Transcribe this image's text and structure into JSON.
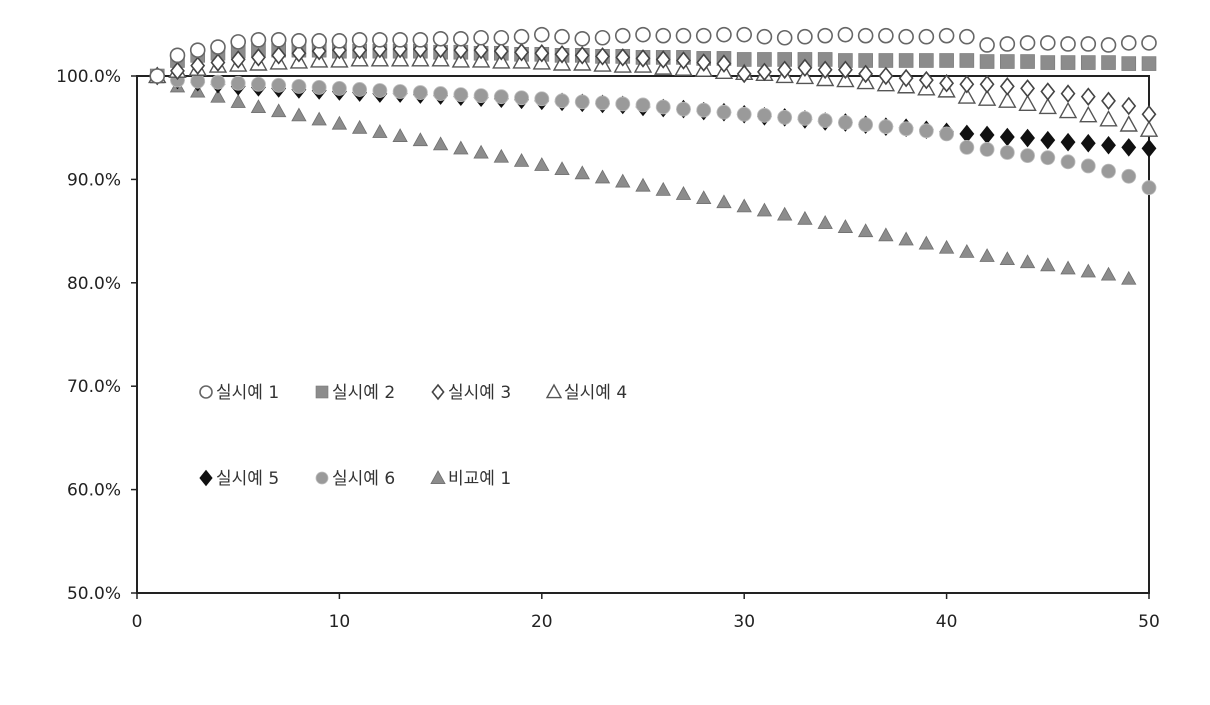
{
  "chart_data": {
    "type": "scatter",
    "title": "",
    "xlabel": "",
    "ylabel": "",
    "xlim": [
      0,
      50
    ],
    "ylim": [
      50,
      100
    ],
    "x_ticks": [
      0,
      10,
      20,
      30,
      40,
      50
    ],
    "y_ticks": [
      50,
      60,
      70,
      80,
      90,
      100
    ],
    "x_tick_labels": [
      "0",
      "10",
      "20",
      "30",
      "40",
      "50"
    ],
    "y_tick_labels": [
      "50.0%",
      "60.0%",
      "70.0%",
      "80.0%",
      "90.0%",
      "100.0%"
    ],
    "grid": false,
    "legend_position": "center-left",
    "series": [
      {
        "name": "실시예 1",
        "marker": "circle-open",
        "color": "#666666",
        "x": [
          1,
          2,
          3,
          4,
          5,
          6,
          7,
          8,
          9,
          10,
          11,
          12,
          13,
          14,
          15,
          16,
          17,
          18,
          19,
          20,
          21,
          22,
          23,
          24,
          25,
          26,
          27,
          28,
          29,
          30,
          31,
          32,
          33,
          34,
          35,
          36,
          37,
          38,
          39,
          40,
          41,
          42,
          43,
          44,
          45,
          46,
          47,
          48,
          49,
          50
        ],
        "y": [
          100.0,
          102.0,
          102.5,
          102.8,
          103.3,
          103.5,
          103.5,
          103.4,
          103.4,
          103.4,
          103.5,
          103.5,
          103.5,
          103.5,
          103.6,
          103.6,
          103.7,
          103.7,
          103.8,
          104.0,
          103.8,
          103.6,
          103.7,
          103.9,
          104.0,
          103.9,
          103.9,
          103.9,
          104.0,
          104.0,
          103.8,
          103.7,
          103.8,
          103.9,
          104.0,
          103.9,
          103.9,
          103.8,
          103.8,
          103.9,
          103.8,
          103.0,
          103.1,
          103.2,
          103.2,
          103.1,
          103.1,
          103.0,
          103.2,
          103.2
        ]
      },
      {
        "name": "실시예 2",
        "marker": "square",
        "color": "#8c8c8c",
        "x": [
          1,
          2,
          3,
          4,
          5,
          6,
          7,
          8,
          9,
          10,
          11,
          12,
          13,
          14,
          15,
          16,
          17,
          18,
          19,
          20,
          21,
          22,
          23,
          24,
          25,
          26,
          27,
          28,
          29,
          30,
          31,
          32,
          33,
          34,
          35,
          36,
          37,
          38,
          39,
          40,
          41,
          42,
          43,
          44,
          45,
          46,
          47,
          48,
          49,
          50
        ],
        "y": [
          100.0,
          101.5,
          102.0,
          102.2,
          102.4,
          102.5,
          102.5,
          102.5,
          102.5,
          102.4,
          102.4,
          102.4,
          102.4,
          102.4,
          102.3,
          102.3,
          102.2,
          102.2,
          102.1,
          102.1,
          102.0,
          102.0,
          101.9,
          101.9,
          101.8,
          101.8,
          101.8,
          101.7,
          101.7,
          101.6,
          101.6,
          101.6,
          101.6,
          101.6,
          101.5,
          101.5,
          101.5,
          101.5,
          101.5,
          101.5,
          101.5,
          101.4,
          101.4,
          101.4,
          101.3,
          101.3,
          101.3,
          101.3,
          101.2,
          101.2
        ]
      },
      {
        "name": "실시예 3",
        "marker": "diamond-open",
        "color": "#555555",
        "x": [
          1,
          2,
          3,
          4,
          5,
          6,
          7,
          8,
          9,
          10,
          11,
          12,
          13,
          14,
          15,
          16,
          17,
          18,
          19,
          20,
          21,
          22,
          23,
          24,
          25,
          26,
          27,
          28,
          29,
          30,
          31,
          32,
          33,
          34,
          35,
          36,
          37,
          38,
          39,
          40,
          41,
          42,
          43,
          44,
          45,
          46,
          47,
          48,
          49,
          50
        ],
        "y": [
          100.0,
          100.5,
          101.0,
          101.3,
          101.6,
          101.8,
          102.0,
          102.2,
          102.4,
          102.5,
          102.5,
          102.6,
          102.6,
          102.6,
          102.6,
          102.5,
          102.5,
          102.4,
          102.3,
          102.2,
          102.1,
          102.0,
          101.9,
          101.8,
          101.7,
          101.6,
          101.5,
          101.3,
          101.2,
          100.2,
          100.4,
          100.6,
          100.8,
          100.6,
          100.6,
          100.2,
          100.0,
          99.8,
          99.6,
          99.3,
          99.2,
          99.2,
          99.0,
          98.8,
          98.5,
          98.3,
          98.0,
          97.6,
          97.1,
          96.3
        ]
      },
      {
        "name": "실시예 4",
        "marker": "triangle-open",
        "color": "#666666",
        "x": [
          1,
          2,
          3,
          4,
          5,
          6,
          7,
          8,
          9,
          10,
          11,
          12,
          13,
          14,
          15,
          16,
          17,
          18,
          19,
          20,
          21,
          22,
          23,
          24,
          25,
          26,
          27,
          28,
          29,
          30,
          31,
          32,
          33,
          34,
          35,
          36,
          37,
          38,
          39,
          40,
          41,
          42,
          43,
          44,
          45,
          46,
          47,
          48,
          49,
          50
        ],
        "y": [
          100.0,
          100.5,
          100.7,
          101.0,
          101.1,
          101.2,
          101.3,
          101.4,
          101.5,
          101.5,
          101.6,
          101.6,
          101.6,
          101.6,
          101.6,
          101.5,
          101.5,
          101.4,
          101.4,
          101.3,
          101.2,
          101.2,
          101.1,
          101.0,
          101.0,
          100.8,
          100.7,
          100.6,
          100.4,
          100.3,
          100.2,
          100.0,
          99.9,
          99.7,
          99.6,
          99.4,
          99.2,
          99.0,
          98.8,
          98.6,
          98.0,
          97.8,
          97.6,
          97.3,
          97.0,
          96.6,
          96.2,
          95.8,
          95.3,
          94.8
        ]
      },
      {
        "name": "실시예 5",
        "marker": "diamond",
        "color": "#111111",
        "x": [
          1,
          2,
          3,
          4,
          5,
          6,
          7,
          8,
          9,
          10,
          11,
          12,
          13,
          14,
          15,
          16,
          17,
          18,
          19,
          20,
          21,
          22,
          23,
          24,
          25,
          26,
          27,
          28,
          29,
          30,
          31,
          32,
          33,
          34,
          35,
          36,
          37,
          38,
          39,
          40,
          41,
          42,
          43,
          44,
          45,
          46,
          47,
          48,
          49,
          50
        ],
        "y": [
          100.0,
          99.6,
          99.4,
          99.2,
          99.0,
          98.9,
          98.8,
          98.7,
          98.6,
          98.5,
          98.4,
          98.3,
          98.3,
          98.2,
          98.1,
          98.0,
          97.9,
          97.8,
          97.7,
          97.6,
          97.5,
          97.4,
          97.3,
          97.2,
          97.0,
          96.9,
          96.8,
          96.6,
          96.5,
          96.3,
          96.1,
          96.0,
          95.8,
          95.6,
          95.5,
          95.3,
          95.1,
          95.0,
          94.8,
          94.6,
          94.4,
          94.3,
          94.1,
          94.0,
          93.8,
          93.6,
          93.5,
          93.3,
          93.1,
          93.0
        ]
      },
      {
        "name": "실시예 6",
        "marker": "circle",
        "color": "#9a9a9a",
        "x": [
          1,
          2,
          3,
          4,
          5,
          6,
          7,
          8,
          9,
          10,
          11,
          12,
          13,
          14,
          15,
          16,
          17,
          18,
          19,
          20,
          21,
          22,
          23,
          24,
          25,
          26,
          27,
          28,
          29,
          30,
          31,
          32,
          33,
          34,
          35,
          36,
          37,
          38,
          39,
          40,
          41,
          42,
          43,
          44,
          45,
          46,
          47,
          48,
          49,
          50
        ],
        "y": [
          100.0,
          99.6,
          99.5,
          99.4,
          99.3,
          99.2,
          99.1,
          99.0,
          98.9,
          98.8,
          98.7,
          98.6,
          98.5,
          98.4,
          98.3,
          98.2,
          98.1,
          98.0,
          97.9,
          97.8,
          97.6,
          97.5,
          97.4,
          97.3,
          97.2,
          97.0,
          96.8,
          96.7,
          96.5,
          96.3,
          96.2,
          96.0,
          95.9,
          95.7,
          95.5,
          95.3,
          95.1,
          94.9,
          94.7,
          94.4,
          93.1,
          92.9,
          92.6,
          92.3,
          92.1,
          91.7,
          91.3,
          90.8,
          90.3,
          89.2
        ]
      },
      {
        "name": "비교예 1",
        "marker": "triangle",
        "color": "#8c8c8c",
        "x": [
          1,
          2,
          3,
          4,
          5,
          6,
          7,
          8,
          9,
          10,
          11,
          12,
          13,
          14,
          15,
          16,
          17,
          18,
          19,
          20,
          21,
          22,
          23,
          24,
          25,
          26,
          27,
          28,
          29,
          30,
          31,
          32,
          33,
          34,
          35,
          36,
          37,
          38,
          39,
          40,
          41,
          42,
          43,
          44,
          45,
          46,
          47,
          48,
          49
        ],
        "y": [
          100.0,
          99.0,
          98.5,
          98.0,
          97.5,
          97.0,
          96.6,
          96.2,
          95.8,
          95.4,
          95.0,
          94.6,
          94.2,
          93.8,
          93.4,
          93.0,
          92.6,
          92.2,
          91.8,
          91.4,
          91.0,
          90.6,
          90.2,
          89.8,
          89.4,
          89.0,
          88.6,
          88.2,
          87.8,
          87.4,
          87.0,
          86.6,
          86.2,
          85.8,
          85.4,
          85.0,
          84.6,
          84.2,
          83.8,
          83.4,
          83.0,
          82.6,
          82.3,
          82.0,
          81.7,
          81.4,
          81.1,
          80.8,
          80.4
        ]
      }
    ],
    "legend_rows": [
      [
        "실시예 1",
        "실시예 2",
        "실시예 3",
        "실시예 4"
      ],
      [
        "실시예 5",
        "실시예 6",
        "비교예 1"
      ]
    ]
  }
}
